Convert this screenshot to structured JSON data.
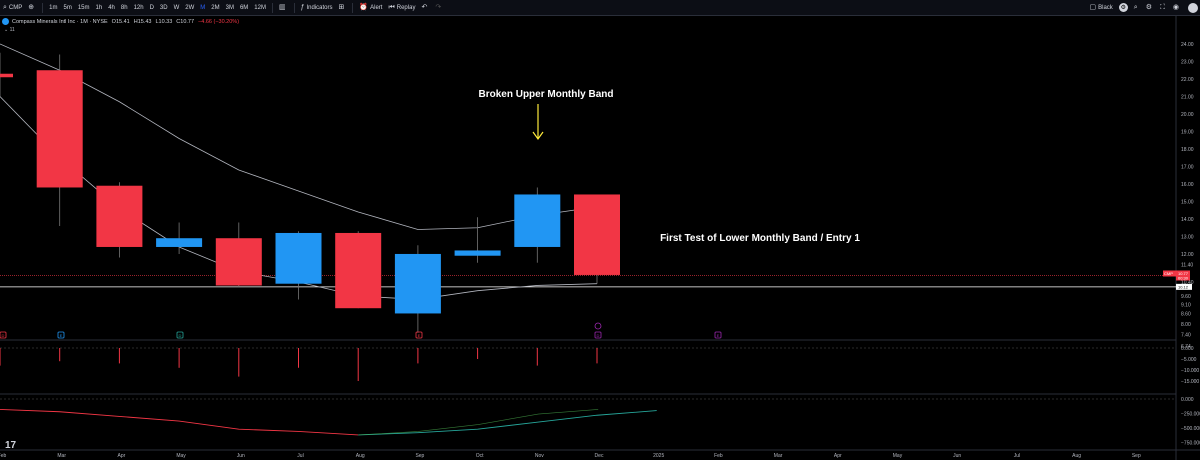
{
  "toolbar": {
    "symbol": "CMP",
    "timeframes": [
      "1m",
      "5m",
      "15m",
      "1h",
      "4h",
      "8h",
      "12h",
      "D",
      "3D",
      "W",
      "2W",
      "M",
      "2M",
      "3M",
      "6M",
      "12M"
    ],
    "active_timeframe": "M",
    "indicators_label": "Indicators",
    "alert_label": "Alert",
    "replay_label": "Replay",
    "theme_label": "Black"
  },
  "legend": {
    "title": "Compass Minerals Intl Inc · 1M · NYSE",
    "open": "O15.41",
    "high": "H15.43",
    "low": "L10.33",
    "close": "C10.77",
    "change": "−4.66 (−30.20%)",
    "indicator_label": "11"
  },
  "annotations": {
    "upper": "Broken Upper Monthly Band",
    "lower": "First Test of Lower Monthly Band / Entry 1"
  },
  "price_axis": {
    "ticks": [
      "24.00",
      "23.00",
      "22.00",
      "21.00",
      "20.00",
      "19.00",
      "18.00",
      "17.00",
      "16.00",
      "15.00",
      "14.00",
      "13.00",
      "12.00",
      "11.40",
      "10.40",
      "9.60",
      "9.10",
      "8.60",
      "8.00",
      "7.40",
      "6.74"
    ],
    "last_price_label": "CMP",
    "last_price": "10.77",
    "last_price_sub": "60:30",
    "band_price": "10.12"
  },
  "hist_axis": [
    "0.000",
    "−5.000",
    "−10.000",
    "−15.000"
  ],
  "osc_axis": [
    "0.000",
    "−250.000",
    "−500.000",
    "−750.000"
  ],
  "time_axis": [
    "Feb",
    "Mar",
    "Apr",
    "May",
    "Jun",
    "Jul",
    "Aug",
    "Sep",
    "Oct",
    "Nov",
    "Dec",
    "2025",
    "Feb",
    "Mar",
    "Apr",
    "May",
    "Jun",
    "Jul",
    "Aug",
    "Sep"
  ],
  "event_markers": [
    "D",
    "E",
    "D",
    "E",
    "D",
    "E"
  ],
  "colors": {
    "bull": "#2196f3",
    "bear": "#f23645",
    "band": "#b2b5be",
    "arrow": "#ffeb3b"
  },
  "chart_data": {
    "type": "candlestick",
    "x": [
      "Feb",
      "Mar",
      "Apr",
      "May",
      "Jun",
      "Jul",
      "Aug",
      "Sep",
      "Oct",
      "Nov",
      "Dec"
    ],
    "ohlc": [
      {
        "o": 22.3,
        "h": 23.5,
        "l": 21.0,
        "c": 22.1
      },
      {
        "o": 22.5,
        "h": 23.4,
        "l": 13.6,
        "c": 15.8
      },
      {
        "o": 15.9,
        "h": 16.1,
        "l": 11.8,
        "c": 12.4
      },
      {
        "o": 12.4,
        "h": 13.8,
        "l": 12.0,
        "c": 12.9
      },
      {
        "o": 12.9,
        "h": 13.8,
        "l": 10.1,
        "c": 10.2
      },
      {
        "o": 10.3,
        "h": 13.3,
        "l": 9.4,
        "c": 13.2
      },
      {
        "o": 13.2,
        "h": 13.3,
        "l": 8.9,
        "c": 8.9
      },
      {
        "o": 8.6,
        "h": 12.5,
        "l": 7.5,
        "c": 12.0
      },
      {
        "o": 11.9,
        "h": 14.1,
        "l": 11.5,
        "c": 12.2
      },
      {
        "o": 12.4,
        "h": 15.8,
        "l": 11.5,
        "c": 15.4
      },
      {
        "o": 15.4,
        "h": 15.4,
        "l": 10.3,
        "c": 10.8
      }
    ],
    "upper_band": [
      24.0,
      22.5,
      20.7,
      18.6,
      16.8,
      15.6,
      14.4,
      13.4,
      13.5,
      14.2,
      14.7
    ],
    "lower_band": [
      21.0,
      17.5,
      14.6,
      12.4,
      11.0,
      10.4,
      9.6,
      9.4,
      9.9,
      10.2,
      10.3
    ],
    "histogram": [
      -8,
      -6,
      -7,
      -9,
      -13,
      -9,
      -15,
      -7,
      -5,
      -8,
      -7
    ],
    "osc_red": [
      -180,
      -220,
      -300,
      -380,
      -520,
      -560,
      -620
    ],
    "osc_green": [
      -620,
      -580,
      -520,
      -400,
      -280,
      -200
    ],
    "ylim": [
      6.74,
      24.8
    ]
  }
}
